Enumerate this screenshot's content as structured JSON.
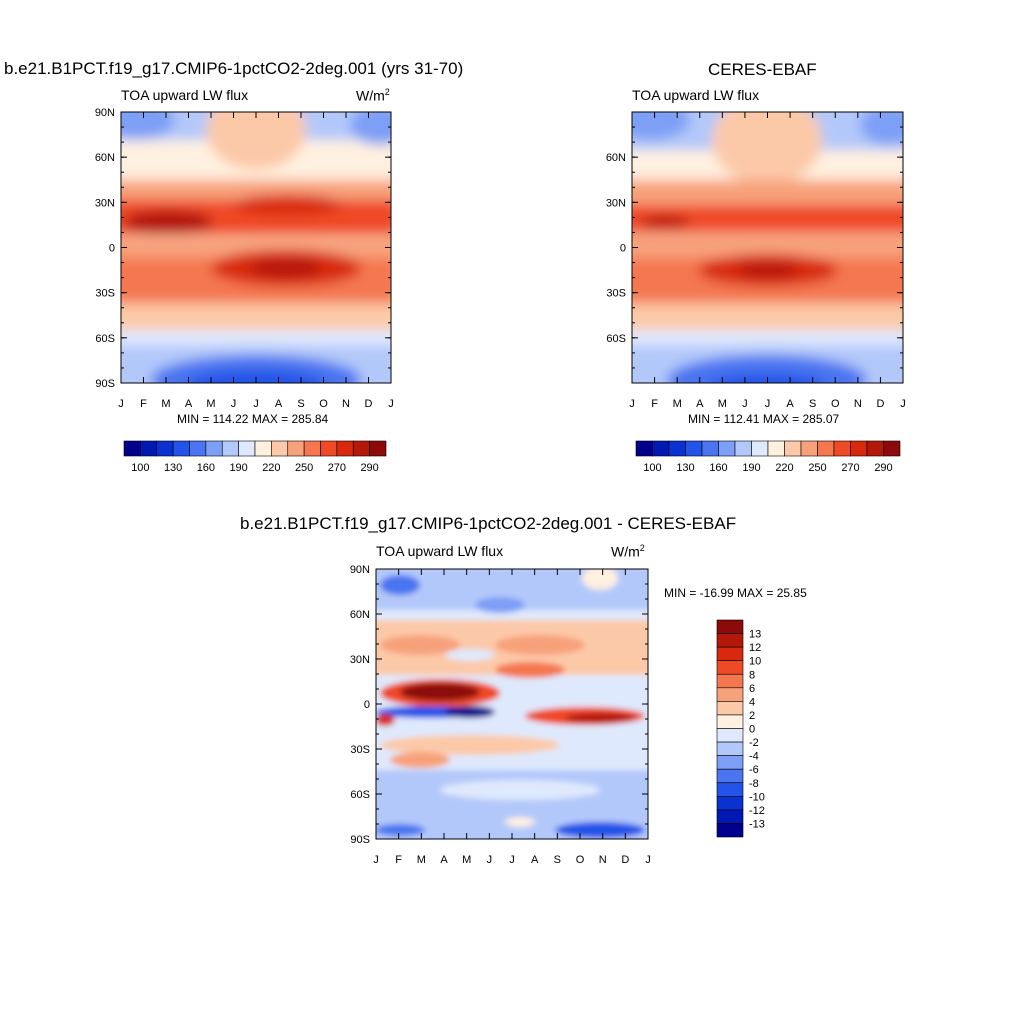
{
  "panels": [
    {
      "id": "model",
      "title": "b.e21.B1PCT.f19_g17.CMIP6-1pctCO2-2deg.001 (yrs 31-70)",
      "left_label": "TOA upward LW flux",
      "units_base": "W/m",
      "units_exp": "2",
      "lat_ticks": [
        "90N",
        "60N",
        "30N",
        "0",
        "30S",
        "60S",
        "90S"
      ],
      "month_ticks": [
        "J",
        "F",
        "M",
        "A",
        "M",
        "J",
        "J",
        "A",
        "S",
        "O",
        "N",
        "D",
        "J"
      ],
      "minmax": "MIN = 114.22 MAX = 285.84"
    },
    {
      "id": "obs",
      "title": "CERES-EBAF",
      "left_label": "TOA upward LW flux",
      "lat_ticks": [
        "60N",
        "30N",
        "0",
        "30S",
        "60S"
      ],
      "month_ticks": [
        "J",
        "F",
        "M",
        "A",
        "M",
        "J",
        "J",
        "A",
        "S",
        "O",
        "N",
        "D",
        "J"
      ],
      "minmax": "MIN = 112.41 MAX = 285.07"
    },
    {
      "id": "diff",
      "title": "b.e21.B1PCT.f19_g17.CMIP6-1pctCO2-2deg.001 - CERES-EBAF",
      "left_label": "TOA upward LW flux",
      "units_base": "W/m",
      "units_exp": "2",
      "lat_ticks": [
        "90N",
        "60N",
        "30N",
        "0",
        "30S",
        "60S",
        "90S"
      ],
      "month_ticks": [
        "J",
        "F",
        "M",
        "A",
        "M",
        "J",
        "J",
        "A",
        "S",
        "O",
        "N",
        "D",
        "J"
      ],
      "minmax": "MIN = -16.99 MAX =  25.85"
    }
  ],
  "abs_colorbar": {
    "colors": [
      "#00008c",
      "#0019b4",
      "#0a32d2",
      "#2353e8",
      "#4a74f0",
      "#7d9ff5",
      "#b3c8fa",
      "#dfe9fd",
      "#fff0e0",
      "#fcc9a8",
      "#f7a17a",
      "#f47750",
      "#ef4a26",
      "#d8290c",
      "#b3180a",
      "#8c0a0a"
    ],
    "labels": [
      "100",
      "130",
      "160",
      "190",
      "220",
      "250",
      "270",
      "290"
    ]
  },
  "diff_colorbar": {
    "colors": [
      "#00008c",
      "#0019b4",
      "#0a32d2",
      "#2353e8",
      "#4a74f0",
      "#7d9ff5",
      "#b3c8fa",
      "#dfe9fd",
      "#fff0e0",
      "#fcc9a8",
      "#f7a17a",
      "#f47750",
      "#ef4a26",
      "#d8290c",
      "#b3180a",
      "#8c0a0a"
    ],
    "labels": [
      "13",
      "12",
      "10",
      "8",
      "6",
      "4",
      "2",
      "0",
      "-2",
      "-4",
      "-6",
      "-8",
      "-10",
      "-12",
      "-13"
    ]
  },
  "chart_data": [
    {
      "type": "heatmap",
      "title": "b.e21.B1PCT.f19_g17.CMIP6-1pctCO2-2deg.001 (yrs 31-70)",
      "variable": "TOA upward LW flux",
      "units": "W/m2",
      "x": [
        "J",
        "F",
        "M",
        "A",
        "M",
        "J",
        "J",
        "A",
        "S",
        "O",
        "N",
        "D",
        "J"
      ],
      "y_range": [
        -90,
        90
      ],
      "min": 114.22,
      "max": 285.84,
      "levels": [
        100,
        130,
        160,
        190,
        220,
        250,
        270,
        290
      ]
    },
    {
      "type": "heatmap",
      "title": "CERES-EBAF",
      "variable": "TOA upward LW flux",
      "x": [
        "J",
        "F",
        "M",
        "A",
        "M",
        "J",
        "J",
        "A",
        "S",
        "O",
        "N",
        "D",
        "J"
      ],
      "y_range": [
        -90,
        90
      ],
      "min": 112.41,
      "max": 285.07,
      "levels": [
        100,
        130,
        160,
        190,
        220,
        250,
        270,
        290
      ]
    },
    {
      "type": "heatmap",
      "title": "b.e21.B1PCT.f19_g17.CMIP6-1pctCO2-2deg.001 - CERES-EBAF",
      "variable": "TOA upward LW flux",
      "units": "W/m2",
      "x": [
        "J",
        "F",
        "M",
        "A",
        "M",
        "J",
        "J",
        "A",
        "S",
        "O",
        "N",
        "D",
        "J"
      ],
      "y_range": [
        -90,
        90
      ],
      "min": -16.99,
      "max": 25.85,
      "levels": [
        -13,
        -12,
        -10,
        -8,
        -6,
        -4,
        -2,
        0,
        2,
        4,
        6,
        8,
        10,
        12,
        13
      ]
    }
  ]
}
